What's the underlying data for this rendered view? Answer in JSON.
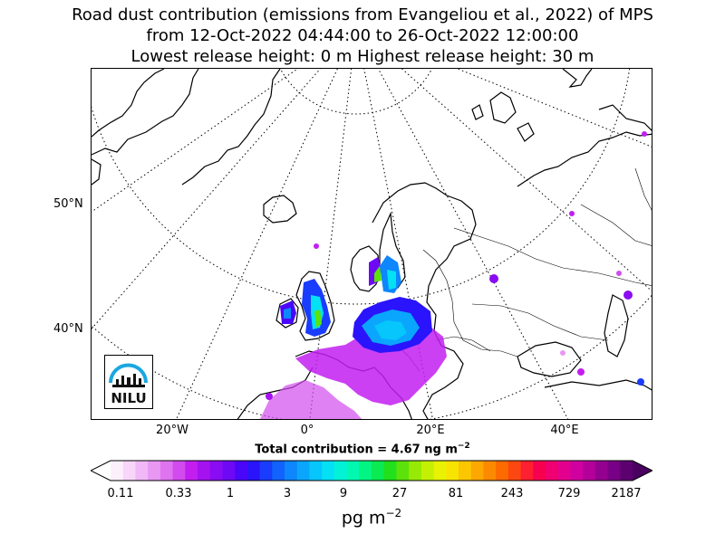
{
  "title_line1": "Road dust contribution (emissions from Evangeliou et al., 2022) of MPS",
  "title_line2": "from 12-Oct-2022 04:44:00 to 26-Oct-2022 12:00:00",
  "title_line3": "Lowest release height: 0 m      Highest release height: 30 m",
  "lat_labels": [
    "50°N",
    "40°N"
  ],
  "lon_labels": [
    "20°W",
    "0°",
    "20°E",
    "40°E"
  ],
  "total_label": "Total contribution = 4.67 ng m",
  "total_exp": "−2",
  "colorbar_ticks": [
    "0.11",
    "0.33",
    "1",
    "3",
    "9",
    "27",
    "81",
    "243",
    "729",
    "2187"
  ],
  "units_label": "pg m",
  "units_exp": "−2",
  "logo_text": "NILU",
  "colors": {
    "logo_blue": "#1aa7e0",
    "colorbar": [
      "#fdf0fd",
      "#f7d6f9",
      "#f0b8f6",
      "#e898f3",
      "#df74f0",
      "#d24bee",
      "#c21ef0",
      "#a512f0",
      "#8a0cf2",
      "#6e08f5",
      "#4a06f8",
      "#2a14fb",
      "#1a3cfc",
      "#1262fd",
      "#0e86fd",
      "#0aa6fd",
      "#06c6fc",
      "#04e0f4",
      "#02f2d8",
      "#02f8b0",
      "#02f482",
      "#0aea52",
      "#22e01c",
      "#5ce20a",
      "#96ea06",
      "#c4f004",
      "#e8f202",
      "#f8e402",
      "#fcc600",
      "#fca800",
      "#fc8a00",
      "#fc6a00",
      "#fc4810",
      "#fc2030",
      "#f80050",
      "#f00070",
      "#e4008e",
      "#d000a0",
      "#b4009a",
      "#940090",
      "#780086",
      "#5c0070"
    ]
  }
}
